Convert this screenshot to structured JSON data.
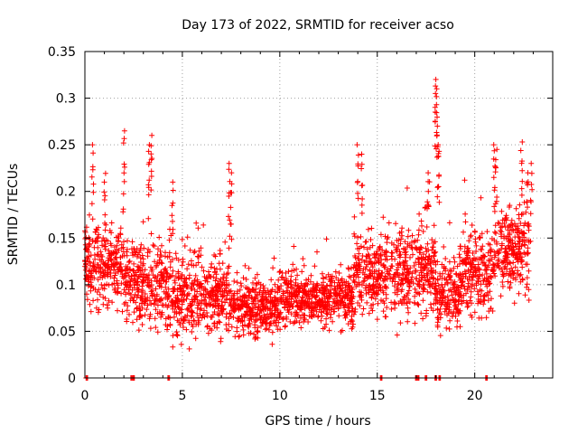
{
  "chart_data": {
    "type": "scatter",
    "title": "Day 173 of 2022, SRMTID for receiver acso",
    "xlabel": "GPS time / hours",
    "ylabel": "SRMTID / TECUs",
    "xlim": [
      0,
      24
    ],
    "ylim": [
      0,
      0.35
    ],
    "xticks": [
      0,
      5,
      10,
      15,
      20
    ],
    "xtick_labels": [
      "0",
      "5",
      "10",
      "15",
      "20"
    ],
    "yticks": [
      0,
      0.05,
      0.1,
      0.15,
      0.2,
      0.25,
      0.3,
      0.35
    ],
    "ytick_labels": [
      "0",
      "0.05",
      "0.1",
      "0.15",
      "0.2",
      "0.25",
      "0.3",
      "0.35"
    ],
    "grid": true,
    "marker": "+",
    "color": "#ff0000",
    "series": [
      {
        "name": "SRMTID",
        "segments": [
          {
            "start": 0.0,
            "end": 2.0,
            "base": 0.12,
            "spread": 0.04
          },
          {
            "start": 2.0,
            "end": 4.5,
            "base": 0.1,
            "spread": 0.035
          },
          {
            "start": 4.5,
            "end": 7.5,
            "base": 0.09,
            "spread": 0.035
          },
          {
            "start": 7.5,
            "end": 10.0,
            "base": 0.075,
            "spread": 0.025
          },
          {
            "start": 10.0,
            "end": 13.8,
            "base": 0.085,
            "spread": 0.025
          },
          {
            "start": 13.8,
            "end": 15.6,
            "base": 0.11,
            "spread": 0.035
          },
          {
            "start": 15.6,
            "end": 18.0,
            "base": 0.11,
            "spread": 0.04
          },
          {
            "start": 18.0,
            "end": 19.2,
            "base": 0.09,
            "spread": 0.03
          },
          {
            "start": 19.2,
            "end": 21.0,
            "base": 0.11,
            "spread": 0.035
          },
          {
            "start": 21.0,
            "end": 22.8,
            "base": 0.14,
            "spread": 0.04
          }
        ],
        "spikes": [
          {
            "x": 0.4,
            "y": 0.25
          },
          {
            "x": 1.0,
            "y": 0.21
          },
          {
            "x": 2.0,
            "y": 0.265
          },
          {
            "x": 3.3,
            "y": 0.25
          },
          {
            "x": 3.4,
            "y": 0.26
          },
          {
            "x": 4.5,
            "y": 0.21
          },
          {
            "x": 7.4,
            "y": 0.23
          },
          {
            "x": 7.5,
            "y": 0.22
          },
          {
            "x": 14.0,
            "y": 0.25
          },
          {
            "x": 14.2,
            "y": 0.24
          },
          {
            "x": 17.6,
            "y": 0.22
          },
          {
            "x": 18.0,
            "y": 0.32
          },
          {
            "x": 18.05,
            "y": 0.31
          },
          {
            "x": 18.1,
            "y": 0.27
          },
          {
            "x": 18.15,
            "y": 0.25
          },
          {
            "x": 21.0,
            "y": 0.25
          },
          {
            "x": 21.1,
            "y": 0.245
          },
          {
            "x": 22.4,
            "y": 0.253
          },
          {
            "x": 22.9,
            "y": 0.23
          },
          {
            "x": 22.7,
            "y": 0.22
          }
        ],
        "zero_markers": [
          0.1,
          2.4,
          2.5,
          4.3,
          15.2,
          17.0,
          17.1,
          17.5,
          18.0,
          18.2,
          20.6
        ]
      }
    ]
  }
}
